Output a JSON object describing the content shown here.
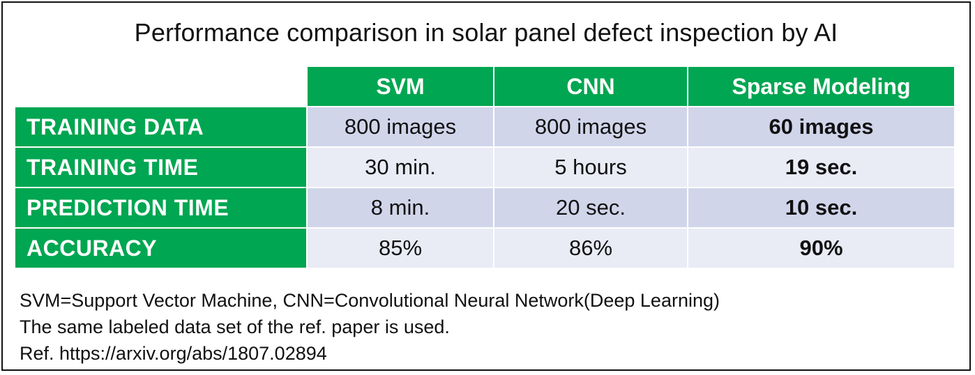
{
  "title": "Performance comparison in solar panel defect inspection by AI",
  "chart_data": {
    "type": "table",
    "title": "Performance comparison in solar panel defect inspection by AI",
    "columns": [
      "SVM",
      "CNN",
      "Sparse Modeling"
    ],
    "rows": [
      {
        "label": "TRAINING DATA",
        "values": [
          "800 images",
          "800 images",
          "60 images"
        ]
      },
      {
        "label": "TRAINING TIME",
        "values": [
          "30 min.",
          "5 hours",
          "19 sec."
        ]
      },
      {
        "label": "PREDICTION TIME",
        "values": [
          "8 min.",
          "20 sec.",
          "10 sec."
        ]
      },
      {
        "label": "ACCURACY",
        "values": [
          "85%",
          "86%",
          "90%"
        ]
      }
    ],
    "highlight_column": "Sparse Modeling"
  },
  "notes": [
    "SVM=Support Vector Machine, CNN=Convolutional Neural Network(Deep Learning)",
    "The same labeled data set of the ref. paper is used.",
    "Ref. https://arxiv.org/abs/1807.02894"
  ],
  "colors": {
    "header_green": "#00a651",
    "row_shade_dark": "#d0d5ea",
    "row_shade_light": "#e9ebf5",
    "text": "#111111"
  }
}
